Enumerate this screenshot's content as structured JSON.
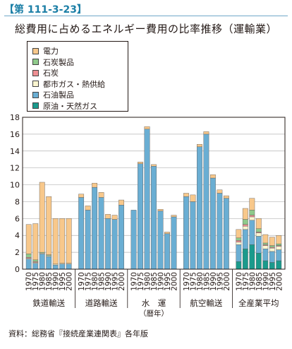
{
  "header": {
    "figure_label": "【第 111-3-23】",
    "title": "総費用に占めるエネルギー費用の比率推移（運輸業）"
  },
  "footer": {
    "source": "資料：総務省『接続産業連関表』各年版"
  },
  "chart_data": {
    "type": "bar",
    "stacked": true,
    "ylim": [
      0,
      18
    ],
    "yticks": [
      0,
      2,
      4,
      6,
      8,
      10,
      12,
      14,
      16,
      18
    ],
    "grid": true,
    "legend_position": "top-left",
    "xlabel": "（暦年）",
    "years": [
      "1970",
      "1975",
      "1980",
      "1985",
      "1990",
      "1995",
      "2000"
    ],
    "groups": [
      {
        "name": "鉄道輸送",
        "xlabel_note": ""
      },
      {
        "name": "道路輸送",
        "xlabel_note": ""
      },
      {
        "name": "水　運",
        "xlabel_note": "（暦年）"
      },
      {
        "name": "航空輸送",
        "xlabel_note": ""
      },
      {
        "name": "全産業平均",
        "xlabel_note": ""
      }
    ],
    "series": [
      {
        "name": "原油・天然ガス",
        "color": "#1a9a8c",
        "values": [
          [
            0,
            0,
            0,
            0,
            0,
            0,
            0
          ],
          [
            0,
            0,
            0,
            0,
            0,
            0,
            0
          ],
          [
            0,
            0,
            0,
            0,
            0,
            0,
            0
          ],
          [
            0,
            0,
            0,
            0,
            0,
            0,
            0
          ],
          [
            0.9,
            2.4,
            2.9,
            1.9,
            1.0,
            0.8,
            1.0
          ]
        ]
      },
      {
        "name": "石油製品",
        "color": "#6aaed3",
        "values": [
          [
            1.2,
            0.7,
            1.8,
            1.5,
            0.5,
            0.6,
            0.6
          ],
          [
            8.5,
            7.0,
            9.7,
            8.5,
            6.0,
            5.9,
            7.6
          ],
          [
            7.0,
            12.5,
            16.6,
            12.2,
            6.9,
            4.2,
            6.2
          ],
          [
            8.6,
            8.0,
            14.5,
            16.0,
            10.8,
            9.0,
            8.4
          ],
          [
            2.0,
            2.3,
            2.9,
            2.0,
            1.4,
            1.3,
            1.3
          ]
        ]
      },
      {
        "name": "都市ガス・熱供給",
        "color": "#fbf6d0",
        "values": [
          [
            0.1,
            0.1,
            0.1,
            0.1,
            0.1,
            0.1,
            0.1
          ],
          [
            0,
            0,
            0,
            0,
            0,
            0,
            0
          ],
          [
            0,
            0,
            0,
            0,
            0,
            0,
            0
          ],
          [
            0,
            0,
            0,
            0,
            0,
            0,
            0
          ],
          [
            0.3,
            0.4,
            0.4,
            0.4,
            0.4,
            0.4,
            0.4
          ]
        ]
      },
      {
        "name": "石炭",
        "color": "#ee8f93",
        "values": [
          [
            0.1,
            0.1,
            0,
            0,
            0,
            0,
            0
          ],
          [
            0,
            0,
            0,
            0,
            0,
            0,
            0
          ],
          [
            0,
            0,
            0,
            0,
            0,
            0,
            0
          ],
          [
            0,
            0,
            0,
            0,
            0,
            0,
            0
          ],
          [
            0.2,
            0.2,
            0.2,
            0.1,
            0.1,
            0.1,
            0.1
          ]
        ]
      },
      {
        "name": "石炭製品",
        "color": "#8fca8b",
        "values": [
          [
            0.4,
            0.2,
            0.1,
            0.1,
            0,
            0,
            0
          ],
          [
            0,
            0,
            0,
            0,
            0,
            0,
            0
          ],
          [
            0,
            0,
            0,
            0,
            0,
            0,
            0
          ],
          [
            0,
            0,
            0,
            0,
            0,
            0,
            0
          ],
          [
            0.3,
            0.6,
            0.6,
            0.4,
            0.2,
            0.2,
            0.2
          ]
        ]
      },
      {
        "name": "電力",
        "color": "#f8c88b",
        "values": [
          [
            3.5,
            4.3,
            8.3,
            6.9,
            5.4,
            5.3,
            5.3
          ],
          [
            0.4,
            0.5,
            0.5,
            0.6,
            0.5,
            0.5,
            0.6
          ],
          [
            0,
            0.2,
            0.3,
            0.2,
            0.2,
            0.2,
            0.2
          ],
          [
            0.4,
            0.8,
            0.3,
            0.3,
            0.4,
            0.4,
            0.3
          ],
          [
            1.0,
            1.3,
            1.4,
            1.2,
            1.0,
            1.0,
            1.0
          ]
        ]
      }
    ]
  }
}
